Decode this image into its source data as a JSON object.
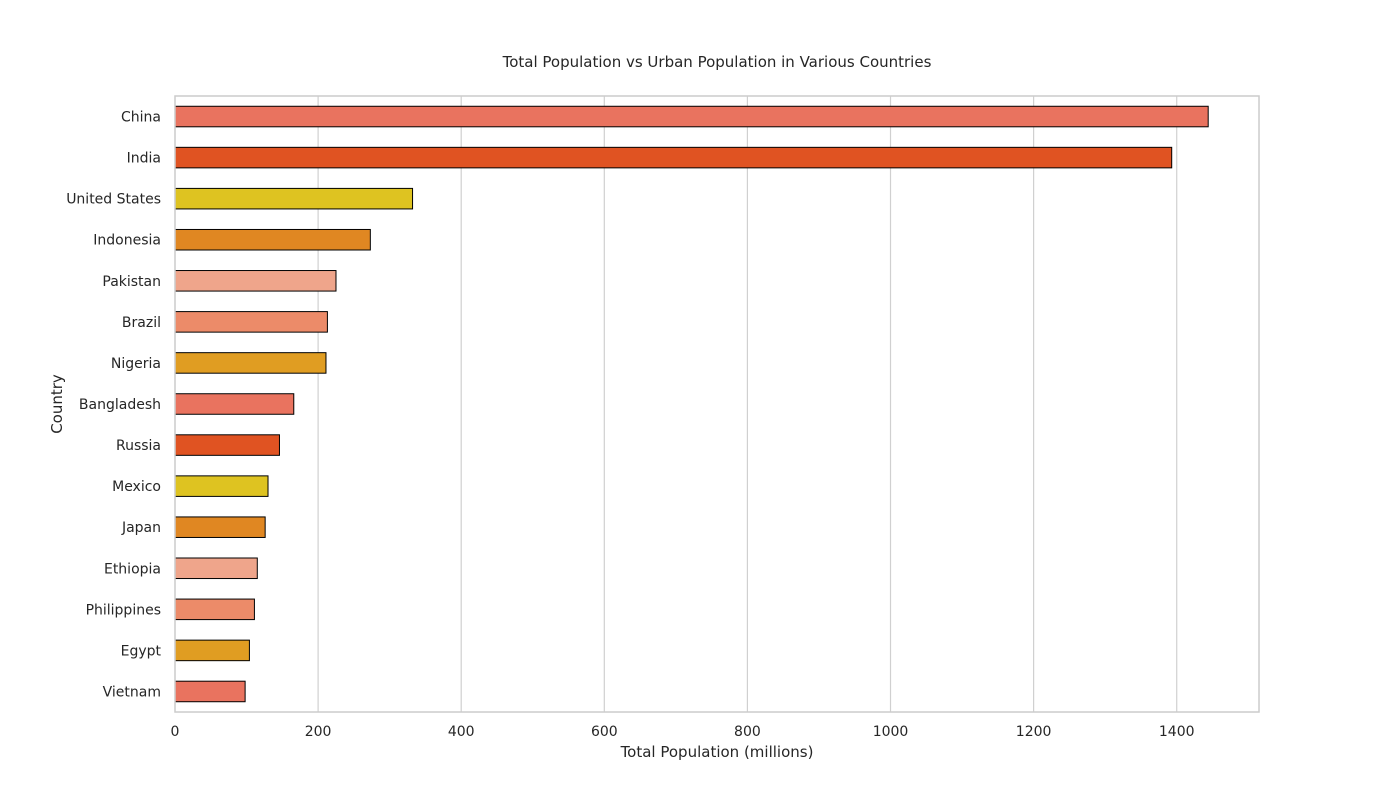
{
  "chart_data": {
    "type": "bar",
    "orientation": "horizontal",
    "title": "Total Population vs Urban Population in Various Countries",
    "xlabel": "Total Population (millions)",
    "ylabel": "Country",
    "xlim": [
      0,
      1515
    ],
    "xticks": [
      0,
      200,
      400,
      600,
      800,
      1000,
      1200,
      1400
    ],
    "grid": true,
    "categories": [
      "China",
      "India",
      "United States",
      "Indonesia",
      "Pakistan",
      "Brazil",
      "Nigeria",
      "Bangladesh",
      "Russia",
      "Mexico",
      "Japan",
      "Ethiopia",
      "Philippines",
      "Egypt",
      "Vietnam"
    ],
    "values": [
      1444,
      1393,
      332,
      273,
      225,
      213,
      211,
      166,
      146,
      130,
      126,
      115,
      111,
      104,
      98
    ],
    "colors": [
      "#e9735f",
      "#e05322",
      "#dec321",
      "#e08722",
      "#efa58b",
      "#ec8b69",
      "#e09d22",
      "#e9735f",
      "#e05322",
      "#dec321",
      "#e08722",
      "#efa58b",
      "#ec8b69",
      "#e09d22",
      "#e9735f"
    ],
    "bar_edge_color": "#000000",
    "grid_color": "#d0d0d0",
    "frame_color": "#cccccc"
  }
}
